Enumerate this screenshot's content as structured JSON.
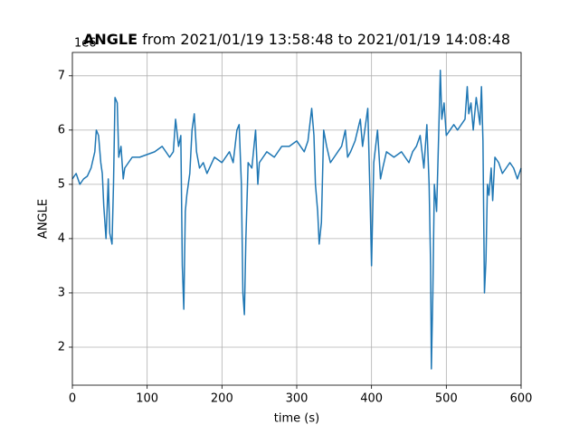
{
  "chart_data": {
    "type": "line",
    "title_bold": "ANGLE",
    "title": "from 2021/01/19 13:58:48 to 2021/01/19 14:08:48",
    "x_label": "time (s)",
    "y_label": "ANGLE",
    "y_offset_label": "1e6",
    "x": [
      0,
      5,
      10,
      15,
      20,
      25,
      30,
      32,
      35,
      38,
      40,
      42,
      45,
      48,
      50,
      53,
      55,
      57,
      60,
      62,
      65,
      68,
      70,
      75,
      80,
      90,
      100,
      110,
      120,
      130,
      135,
      138,
      142,
      145,
      147,
      149,
      151,
      153,
      157,
      160,
      163,
      166,
      170,
      175,
      180,
      190,
      200,
      210,
      215,
      220,
      223,
      226,
      228,
      230,
      232,
      235,
      240,
      245,
      248,
      250,
      255,
      260,
      270,
      280,
      290,
      300,
      310,
      315,
      320,
      323,
      325,
      328,
      330,
      333,
      336,
      340,
      345,
      350,
      355,
      360,
      365,
      368,
      372,
      378,
      385,
      388,
      395,
      398,
      400,
      403,
      408,
      412,
      415,
      420,
      430,
      440,
      450,
      455,
      460,
      465,
      470,
      474,
      477,
      479,
      480,
      482,
      484,
      487,
      489,
      492,
      494,
      497,
      500,
      505,
      510,
      515,
      520,
      525,
      528,
      530,
      533,
      536,
      540,
      545,
      547,
      549,
      551,
      553,
      555,
      557,
      560,
      562,
      565,
      570,
      575,
      580,
      585,
      590,
      595,
      600
    ],
    "series": [
      {
        "name": "ANGLE",
        "color": "#1f77b4",
        "values": [
          5.1,
          5.2,
          5.0,
          5.1,
          5.15,
          5.3,
          5.6,
          6.0,
          5.9,
          5.4,
          5.2,
          4.6,
          4.0,
          5.1,
          4.1,
          3.9,
          5.0,
          6.6,
          6.5,
          5.5,
          5.7,
          5.1,
          5.3,
          5.4,
          5.5,
          5.5,
          5.55,
          5.6,
          5.7,
          5.5,
          5.6,
          6.2,
          5.7,
          5.9,
          3.5,
          2.7,
          4.5,
          4.8,
          5.2,
          6.0,
          6.3,
          5.6,
          5.3,
          5.4,
          5.2,
          5.5,
          5.4,
          5.6,
          5.4,
          6.0,
          6.1,
          5.0,
          3.0,
          2.6,
          4.0,
          5.4,
          5.3,
          6.0,
          5.0,
          5.4,
          5.5,
          5.6,
          5.5,
          5.7,
          5.7,
          5.8,
          5.6,
          5.8,
          6.4,
          5.9,
          5.0,
          4.5,
          3.9,
          4.3,
          6.0,
          5.7,
          5.4,
          5.5,
          5.6,
          5.7,
          6.0,
          5.5,
          5.6,
          5.8,
          6.2,
          5.7,
          6.4,
          4.8,
          3.5,
          5.4,
          6.0,
          5.1,
          5.3,
          5.6,
          5.5,
          5.6,
          5.4,
          5.6,
          5.7,
          5.9,
          5.3,
          6.1,
          5.0,
          3.5,
          1.6,
          3.0,
          5.0,
          4.5,
          5.5,
          7.1,
          6.2,
          6.5,
          5.9,
          6.0,
          6.1,
          6.0,
          6.1,
          6.2,
          6.8,
          6.3,
          6.5,
          6.0,
          6.6,
          6.1,
          6.8,
          5.8,
          3.0,
          3.6,
          5.0,
          4.8,
          5.3,
          4.7,
          5.5,
          5.4,
          5.2,
          5.3,
          5.4,
          5.3,
          5.1,
          5.3
        ]
      }
    ],
    "xlim": [
      0,
      600
    ],
    "xticks": [
      0,
      100,
      200,
      300,
      400,
      500,
      600
    ],
    "ylim": [
      1.3,
      7.43
    ],
    "yticks": [
      2,
      3,
      4,
      5,
      6,
      7
    ],
    "grid": true
  }
}
